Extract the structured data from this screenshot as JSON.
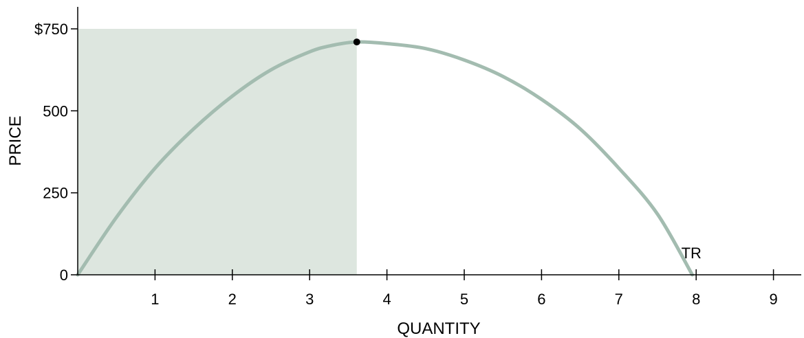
{
  "chart_data": {
    "type": "line",
    "title": "",
    "xlabel": "QUANTITY",
    "ylabel": "PRICE",
    "xlim": [
      0,
      9.4
    ],
    "ylim": [
      0,
      750
    ],
    "x_ticks": [
      1,
      2,
      3,
      4,
      5,
      6,
      7,
      8,
      9
    ],
    "x_tick_labels": [
      "1",
      "2",
      "3",
      "4",
      "5",
      "6",
      "7",
      "8",
      "9"
    ],
    "y_ticks": [
      0,
      250,
      500,
      750
    ],
    "y_tick_labels": [
      "0",
      "250",
      "500",
      "$750"
    ],
    "grid": false,
    "series": [
      {
        "name": "TR",
        "x": [
          0,
          0.5,
          1,
          1.5,
          2,
          2.5,
          3,
          3.3,
          3.61,
          4,
          4.5,
          5,
          5.5,
          6,
          6.5,
          7,
          7.5,
          7.95
        ],
        "y": [
          0,
          175,
          325,
          445,
          545,
          625,
          680,
          700,
          710,
          705,
          690,
          655,
          605,
          535,
          445,
          325,
          185,
          0
        ],
        "color": "#a3bcb0"
      }
    ],
    "highlight_point": {
      "x": 3.61,
      "y": 710
    },
    "shaded_region": {
      "x": [
        0,
        3.61
      ],
      "y": [
        0,
        750
      ],
      "color": "#dde6df"
    },
    "annotations": [
      {
        "text": "TR",
        "x": 7.95,
        "y": 0
      }
    ]
  }
}
